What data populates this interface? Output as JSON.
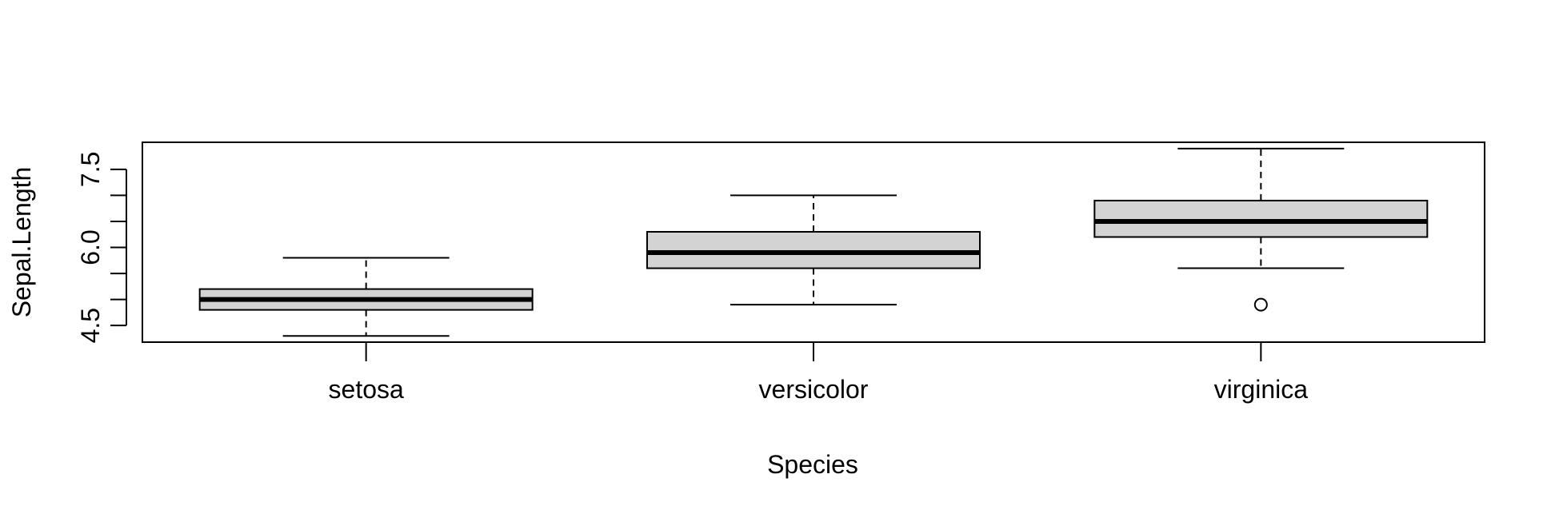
{
  "chart_data": {
    "type": "boxplot",
    "xlabel": "Species",
    "ylabel": "Sepal.Length",
    "categories": [
      "setosa",
      "versicolor",
      "virginica"
    ],
    "boxes": [
      {
        "category": "setosa",
        "whisker_low": 4.3,
        "q1": 4.8,
        "median": 5.0,
        "q3": 5.2,
        "whisker_high": 5.8,
        "outliers": []
      },
      {
        "category": "versicolor",
        "whisker_low": 4.9,
        "q1": 5.6,
        "median": 5.9,
        "q3": 6.3,
        "whisker_high": 7.0,
        "outliers": []
      },
      {
        "category": "virginica",
        "whisker_low": 5.6,
        "q1": 6.2,
        "median": 6.5,
        "q3": 6.9,
        "whisker_high": 7.9,
        "outliers": [
          4.9
        ]
      }
    ],
    "yticks": [
      4.5,
      5.0,
      5.5,
      6.0,
      6.5,
      7.0,
      7.5
    ],
    "ytick_labels": [
      "4.5",
      "",
      "",
      "6.0",
      "",
      "",
      "7.5"
    ],
    "ylim": [
      4.18,
      8.02
    ],
    "colors": {
      "box_fill": "#d3d3d3",
      "line": "#000000"
    },
    "grid": false,
    "legend": "none"
  }
}
